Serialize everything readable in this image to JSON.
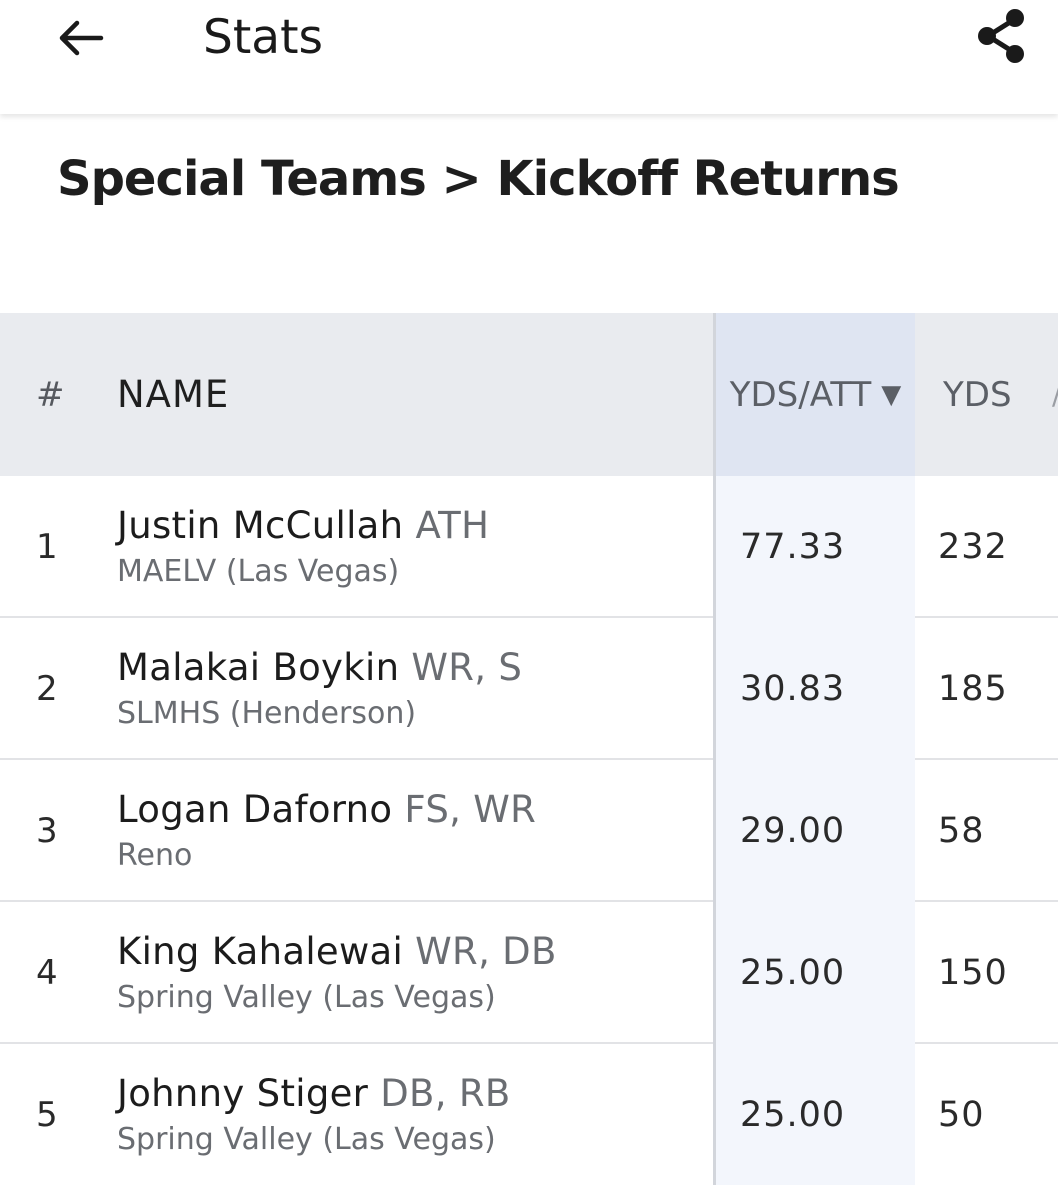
{
  "header": {
    "title": "Stats",
    "back_icon": "arrow-left-icon",
    "share_icon": "share-icon"
  },
  "breadcrumb": "Special Teams > Kickoff Returns",
  "table": {
    "columns": {
      "rank": "#",
      "name": "NAME",
      "yds_att": "YDS/ATT",
      "sort_indicator": "▼",
      "yds": "YDS"
    },
    "rows": [
      {
        "rank": "1",
        "name": "Justin McCullah",
        "position": "ATH",
        "school": "MAELV (Las Vegas)",
        "yds_att": "77.33",
        "yds": "232"
      },
      {
        "rank": "2",
        "name": "Malakai Boykin",
        "position": "WR, S",
        "school": "SLMHS (Henderson)",
        "yds_att": "30.83",
        "yds": "185"
      },
      {
        "rank": "3",
        "name": "Logan Daforno",
        "position": "FS, WR",
        "school": "Reno",
        "yds_att": "29.00",
        "yds": "58"
      },
      {
        "rank": "4",
        "name": "King Kahalewai",
        "position": "WR, DB",
        "school": "Spring Valley (Las Vegas)",
        "yds_att": "25.00",
        "yds": "150"
      },
      {
        "rank": "5",
        "name": "Johnny Stiger",
        "position": "DB, RB",
        "school": "Spring Valley (Las Vegas)",
        "yds_att": "25.00",
        "yds": "50"
      }
    ]
  }
}
